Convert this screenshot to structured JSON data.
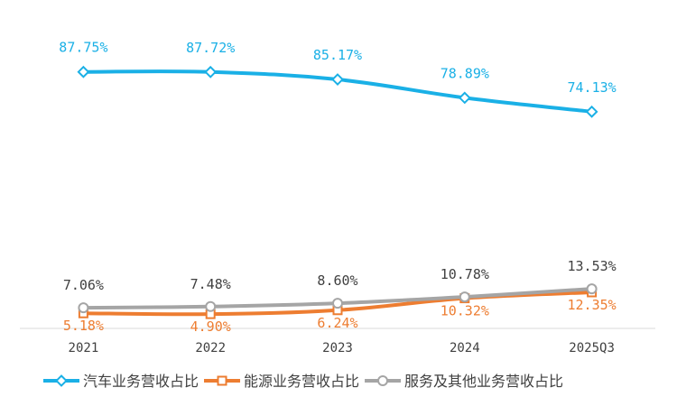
{
  "chart_data": {
    "type": "line",
    "categories": [
      "2021",
      "2022",
      "2023",
      "2024",
      "2025Q3"
    ],
    "ylim": [
      0,
      100
    ],
    "grid": false,
    "legend_position": "bottom",
    "series": [
      {
        "name": "汽车业务营收占比",
        "values": [
          87.75,
          87.72,
          85.17,
          78.89,
          74.13
        ],
        "labels": [
          "87.75%",
          "87.72%",
          "85.17%",
          "78.89%",
          "74.13%"
        ],
        "color": "#1AB0E6",
        "marker": "diamond",
        "label_position": "above"
      },
      {
        "name": "能源业务营收占比",
        "values": [
          5.18,
          4.9,
          6.24,
          10.32,
          12.35
        ],
        "labels": [
          "5.18%",
          "4.90%",
          "6.24%",
          "10.32%",
          "12.35%"
        ],
        "color": "#ED7D31",
        "marker": "square",
        "label_position": "below"
      },
      {
        "name": "服务及其他业务营收占比",
        "values": [
          7.06,
          7.48,
          8.6,
          10.78,
          13.53
        ],
        "labels": [
          "7.06%",
          "7.48%",
          "8.60%",
          "10.78%",
          "13.53%"
        ],
        "color": "#A5A5A5",
        "marker": "circle",
        "label_position": "above"
      }
    ]
  }
}
